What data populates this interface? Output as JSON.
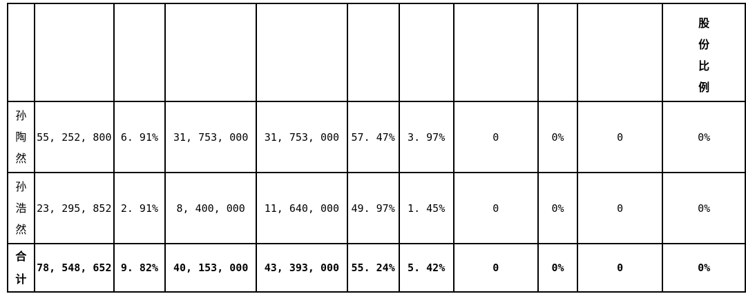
{
  "header": {
    "last_col_chars": [
      "股",
      "份",
      "比",
      "例"
    ]
  },
  "rows": [
    {
      "name_chars": [
        "孙",
        "陶",
        "然"
      ],
      "cells": [
        "55, 252, 800",
        "6. 91%",
        "31, 753, 000",
        "31, 753, 000",
        "57. 47%",
        "3. 97%",
        "0",
        "0%",
        "0",
        "0%"
      ]
    },
    {
      "name_chars": [
        "孙",
        "浩",
        "然"
      ],
      "cells": [
        "23, 295, 852",
        "2. 91%",
        "8, 400, 000",
        "11, 640, 000",
        "49. 97%",
        "1. 45%",
        "0",
        "0%",
        "0",
        "0%"
      ]
    }
  ],
  "total": {
    "name_chars": [
      "合",
      "计"
    ],
    "cells": [
      "78, 548, 652",
      "9. 82%",
      "40, 153, 000",
      "43, 393, 000",
      "55. 24%",
      "5. 42%",
      "0",
      "0%",
      "0",
      "0%"
    ]
  }
}
